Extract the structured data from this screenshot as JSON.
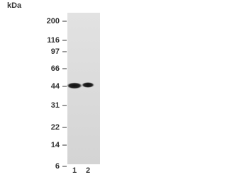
{
  "unit": "kDa",
  "markers": [
    "200",
    "116",
    "97",
    "66",
    "44",
    "31",
    "22",
    "14",
    "6"
  ],
  "lanes": [
    "1",
    "2"
  ]
}
